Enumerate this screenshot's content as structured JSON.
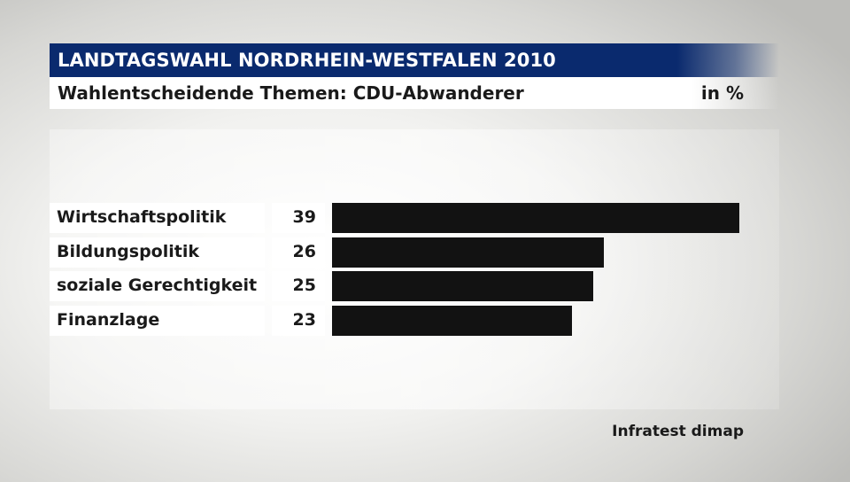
{
  "header": {
    "title": "LANDTAGSWAHL NORDRHEIN-WESTFALEN 2010",
    "subtitle": "Wahlentscheidende Themen: CDU-Abwanderer",
    "unit": "in %"
  },
  "source": "Infratest dimap",
  "colors": {
    "title_background": "#0a2a6e",
    "bar": "#121212"
  },
  "chart_data": {
    "type": "bar",
    "orientation": "horizontal",
    "title": "Wahlentscheidende Themen: CDU-Abwanderer",
    "unit": "in %",
    "categories": [
      "Wirtschaftspolitik",
      "Bildungspolitik",
      "soziale Gerechtigkeit",
      "Finanzlage"
    ],
    "values": [
      39,
      26,
      25,
      23
    ],
    "value_labels": [
      "39",
      "26",
      "25",
      "23"
    ],
    "xlim": [
      0,
      39
    ],
    "grid": false,
    "legend": "none"
  }
}
